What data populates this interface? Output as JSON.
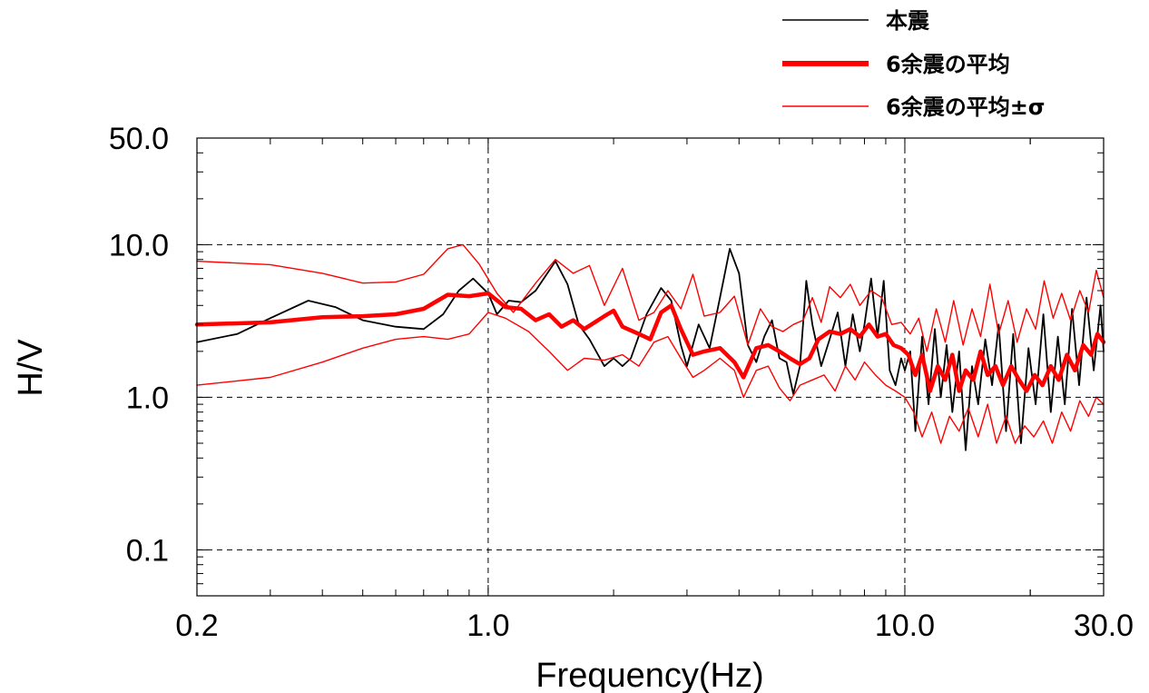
{
  "chart_data": {
    "type": "line",
    "xlabel": "Frequency(Hz)",
    "ylabel": "H/V",
    "xscale": "log",
    "yscale": "log",
    "xlim": [
      0.2,
      30.0
    ],
    "ylim": [
      0.05,
      50.0
    ],
    "grid": "dashed at major ticks",
    "legend_position": "top-right, above plot",
    "x_tick_labels": [
      {
        "value": 0.2,
        "label": "0.2"
      },
      {
        "value": 1.0,
        "label": "1.0"
      },
      {
        "value": 10.0,
        "label": "10.0"
      },
      {
        "value": 30.0,
        "label": "30.0"
      }
    ],
    "y_tick_labels": [
      {
        "value": 50.0,
        "label": "50.0"
      },
      {
        "value": 10.0,
        "label": "10.0"
      },
      {
        "value": 1.0,
        "label": "1.0"
      },
      {
        "value": 0.1,
        "label": "0.1"
      }
    ],
    "series": [
      {
        "name": "本震",
        "color": "#000000",
        "style": "thin",
        "points": [
          [
            0.2,
            2.3
          ],
          [
            0.25,
            2.6
          ],
          [
            0.3,
            3.3
          ],
          [
            0.37,
            4.3
          ],
          [
            0.43,
            3.9
          ],
          [
            0.5,
            3.2
          ],
          [
            0.6,
            2.9
          ],
          [
            0.7,
            2.8
          ],
          [
            0.78,
            3.5
          ],
          [
            0.85,
            5.0
          ],
          [
            0.92,
            6.0
          ],
          [
            1.0,
            4.8
          ],
          [
            1.05,
            3.5
          ],
          [
            1.12,
            4.3
          ],
          [
            1.2,
            4.2
          ],
          [
            1.3,
            5.0
          ],
          [
            1.45,
            7.8
          ],
          [
            1.55,
            5.5
          ],
          [
            1.65,
            3.0
          ],
          [
            1.75,
            2.4
          ],
          [
            1.9,
            1.6
          ],
          [
            2.0,
            1.8
          ],
          [
            2.1,
            1.6
          ],
          [
            2.2,
            1.8
          ],
          [
            2.4,
            3.5
          ],
          [
            2.6,
            5.2
          ],
          [
            2.75,
            4.3
          ],
          [
            2.9,
            2.2
          ],
          [
            3.0,
            1.6
          ],
          [
            3.2,
            3.0
          ],
          [
            3.4,
            2.1
          ],
          [
            3.6,
            4.5
          ],
          [
            3.8,
            9.4
          ],
          [
            4.0,
            6.5
          ],
          [
            4.2,
            2.2
          ],
          [
            4.4,
            1.7
          ],
          [
            4.6,
            2.5
          ],
          [
            4.8,
            3.2
          ],
          [
            5.0,
            1.8
          ],
          [
            5.2,
            1.7
          ],
          [
            5.4,
            1.05
          ],
          [
            5.6,
            1.6
          ],
          [
            5.8,
            5.8
          ],
          [
            6.0,
            3.0
          ],
          [
            6.3,
            1.6
          ],
          [
            6.6,
            2.4
          ],
          [
            6.9,
            3.6
          ],
          [
            7.2,
            1.6
          ],
          [
            7.5,
            3.5
          ],
          [
            7.8,
            2.0
          ],
          [
            8.0,
            3.0
          ],
          [
            8.3,
            6.0
          ],
          [
            8.6,
            2.5
          ],
          [
            8.9,
            5.8
          ],
          [
            9.2,
            1.5
          ],
          [
            9.5,
            1.2
          ],
          [
            9.8,
            1.8
          ],
          [
            10.0,
            1.5
          ],
          [
            10.3,
            2.0
          ],
          [
            10.6,
            0.6
          ],
          [
            11.0,
            2.5
          ],
          [
            11.4,
            0.9
          ],
          [
            11.8,
            2.8
          ],
          [
            12.2,
            1.0
          ],
          [
            12.6,
            2.2
          ],
          [
            13.0,
            0.8
          ],
          [
            13.5,
            2.0
          ],
          [
            14.0,
            0.45
          ],
          [
            14.5,
            1.6
          ],
          [
            15.0,
            0.9
          ],
          [
            15.6,
            2.4
          ],
          [
            16.2,
            1.2
          ],
          [
            16.8,
            3.0
          ],
          [
            17.5,
            0.6
          ],
          [
            18.2,
            2.6
          ],
          [
            19.0,
            0.5
          ],
          [
            19.8,
            2.1
          ],
          [
            20.6,
            0.9
          ],
          [
            21.5,
            3.5
          ],
          [
            22.4,
            0.8
          ],
          [
            23.3,
            2.5
          ],
          [
            24.2,
            0.9
          ],
          [
            25.2,
            3.8
          ],
          [
            26.2,
            1.2
          ],
          [
            27.3,
            4.5
          ],
          [
            28.4,
            1.5
          ],
          [
            29.5,
            4.0
          ],
          [
            30.0,
            2.0
          ]
        ]
      },
      {
        "name": "6余震の平均",
        "color": "#ff0000",
        "style": "thick",
        "points": [
          [
            0.2,
            3.0
          ],
          [
            0.3,
            3.1
          ],
          [
            0.4,
            3.35
          ],
          [
            0.5,
            3.4
          ],
          [
            0.6,
            3.5
          ],
          [
            0.7,
            3.8
          ],
          [
            0.8,
            4.7
          ],
          [
            0.9,
            4.6
          ],
          [
            1.0,
            4.8
          ],
          [
            1.1,
            3.9
          ],
          [
            1.2,
            3.8
          ],
          [
            1.3,
            3.2
          ],
          [
            1.4,
            3.5
          ],
          [
            1.5,
            2.9
          ],
          [
            1.6,
            3.2
          ],
          [
            1.7,
            2.8
          ],
          [
            1.9,
            3.4
          ],
          [
            2.0,
            3.7
          ],
          [
            2.1,
            2.9
          ],
          [
            2.3,
            2.6
          ],
          [
            2.45,
            2.4
          ],
          [
            2.6,
            3.6
          ],
          [
            2.75,
            4.0
          ],
          [
            2.9,
            2.8
          ],
          [
            3.0,
            2.3
          ],
          [
            3.1,
            1.9
          ],
          [
            3.3,
            2.0
          ],
          [
            3.6,
            2.1
          ],
          [
            3.9,
            1.7
          ],
          [
            4.1,
            1.35
          ],
          [
            4.4,
            2.1
          ],
          [
            4.7,
            2.2
          ],
          [
            5.0,
            2.0
          ],
          [
            5.3,
            1.8
          ],
          [
            5.6,
            1.65
          ],
          [
            5.9,
            1.8
          ],
          [
            6.2,
            2.4
          ],
          [
            6.6,
            2.7
          ],
          [
            7.0,
            2.6
          ],
          [
            7.4,
            2.8
          ],
          [
            7.8,
            2.5
          ],
          [
            8.2,
            3.0
          ],
          [
            8.6,
            2.5
          ],
          [
            9.0,
            2.6
          ],
          [
            9.4,
            2.2
          ],
          [
            9.8,
            2.1
          ],
          [
            10.2,
            1.9
          ],
          [
            10.6,
            1.4
          ],
          [
            11.0,
            1.9
          ],
          [
            11.5,
            1.1
          ],
          [
            12.0,
            1.6
          ],
          [
            12.5,
            1.3
          ],
          [
            13.0,
            1.9
          ],
          [
            13.5,
            1.1
          ],
          [
            14.0,
            1.5
          ],
          [
            14.6,
            1.3
          ],
          [
            15.2,
            2.0
          ],
          [
            15.8,
            1.4
          ],
          [
            16.5,
            1.6
          ],
          [
            17.2,
            1.2
          ],
          [
            18.0,
            1.6
          ],
          [
            18.8,
            1.3
          ],
          [
            19.6,
            1.1
          ],
          [
            20.5,
            1.4
          ],
          [
            21.4,
            1.2
          ],
          [
            22.4,
            1.6
          ],
          [
            23.4,
            1.3
          ],
          [
            24.5,
            1.9
          ],
          [
            25.6,
            1.5
          ],
          [
            26.8,
            2.2
          ],
          [
            28.0,
            1.9
          ],
          [
            29.0,
            2.6
          ],
          [
            30.0,
            2.3
          ]
        ]
      },
      {
        "name": "6余震の平均±σ",
        "color": "#ff0000",
        "style": "thin",
        "points": [
          [
            0.2,
            7.8
          ],
          [
            0.3,
            7.4
          ],
          [
            0.4,
            6.5
          ],
          [
            0.5,
            5.6
          ],
          [
            0.6,
            5.7
          ],
          [
            0.7,
            6.4
          ],
          [
            0.8,
            9.4
          ],
          [
            0.87,
            10.0
          ],
          [
            0.95,
            7.5
          ],
          [
            1.05,
            4.8
          ],
          [
            1.15,
            3.6
          ],
          [
            1.3,
            5.6
          ],
          [
            1.45,
            8.0
          ],
          [
            1.6,
            6.5
          ],
          [
            1.75,
            7.3
          ],
          [
            1.9,
            4.0
          ],
          [
            2.1,
            7.0
          ],
          [
            2.3,
            3.2
          ],
          [
            2.5,
            3.6
          ],
          [
            2.7,
            5.0
          ],
          [
            2.9,
            3.8
          ],
          [
            3.1,
            6.4
          ],
          [
            3.3,
            3.4
          ],
          [
            3.6,
            3.6
          ],
          [
            3.9,
            4.6
          ],
          [
            4.2,
            2.2
          ],
          [
            4.5,
            3.8
          ],
          [
            4.8,
            2.9
          ],
          [
            5.1,
            2.7
          ],
          [
            5.4,
            3.0
          ],
          [
            5.7,
            3.2
          ],
          [
            6.0,
            4.5
          ],
          [
            6.3,
            3.1
          ],
          [
            6.6,
            5.3
          ],
          [
            7.0,
            4.5
          ],
          [
            7.4,
            5.5
          ],
          [
            7.8,
            4.0
          ],
          [
            8.3,
            5.0
          ],
          [
            8.8,
            4.5
          ],
          [
            9.3,
            3.0
          ],
          [
            9.8,
            3.1
          ],
          [
            10.3,
            2.6
          ],
          [
            10.8,
            3.3
          ],
          [
            11.3,
            2.0
          ],
          [
            11.9,
            3.8
          ],
          [
            12.5,
            2.3
          ],
          [
            13.1,
            4.3
          ],
          [
            13.8,
            2.2
          ],
          [
            14.5,
            3.8
          ],
          [
            15.2,
            2.5
          ],
          [
            16.0,
            5.5
          ],
          [
            16.8,
            2.6
          ],
          [
            17.7,
            4.3
          ],
          [
            18.6,
            2.3
          ],
          [
            19.6,
            3.8
          ],
          [
            20.6,
            2.8
          ],
          [
            21.6,
            5.8
          ],
          [
            22.7,
            3.3
          ],
          [
            23.8,
            4.8
          ],
          [
            25.0,
            3.2
          ],
          [
            26.3,
            5.0
          ],
          [
            27.6,
            3.6
          ],
          [
            28.8,
            6.8
          ],
          [
            30.0,
            4.5
          ]
        ]
      },
      {
        "name": "",
        "color": "#ff0000",
        "style": "thin",
        "points": [
          [
            0.2,
            1.2
          ],
          [
            0.3,
            1.35
          ],
          [
            0.4,
            1.7
          ],
          [
            0.5,
            2.1
          ],
          [
            0.6,
            2.4
          ],
          [
            0.7,
            2.5
          ],
          [
            0.8,
            2.4
          ],
          [
            0.9,
            2.6
          ],
          [
            1.0,
            3.6
          ],
          [
            1.1,
            3.3
          ],
          [
            1.25,
            2.7
          ],
          [
            1.4,
            2.0
          ],
          [
            1.55,
            1.5
          ],
          [
            1.7,
            1.8
          ],
          [
            1.9,
            1.75
          ],
          [
            2.1,
            1.9
          ],
          [
            2.3,
            1.6
          ],
          [
            2.5,
            2.3
          ],
          [
            2.7,
            2.5
          ],
          [
            2.9,
            1.8
          ],
          [
            3.1,
            1.35
          ],
          [
            3.3,
            1.5
          ],
          [
            3.6,
            1.8
          ],
          [
            3.9,
            1.5
          ],
          [
            4.1,
            1.0
          ],
          [
            4.4,
            1.5
          ],
          [
            4.7,
            1.6
          ],
          [
            5.0,
            1.15
          ],
          [
            5.3,
            0.95
          ],
          [
            5.6,
            1.2
          ],
          [
            6.0,
            1.3
          ],
          [
            6.4,
            1.4
          ],
          [
            6.8,
            1.1
          ],
          [
            7.2,
            1.6
          ],
          [
            7.6,
            1.3
          ],
          [
            8.0,
            1.7
          ],
          [
            8.5,
            1.4
          ],
          [
            9.0,
            1.2
          ],
          [
            9.5,
            1.1
          ],
          [
            10.0,
            1.0
          ],
          [
            10.5,
            0.8
          ],
          [
            11.0,
            0.55
          ],
          [
            11.6,
            0.8
          ],
          [
            12.2,
            0.5
          ],
          [
            12.8,
            0.75
          ],
          [
            13.5,
            0.6
          ],
          [
            14.2,
            0.85
          ],
          [
            15.0,
            0.55
          ],
          [
            15.8,
            0.9
          ],
          [
            16.6,
            0.5
          ],
          [
            17.5,
            0.75
          ],
          [
            18.4,
            0.5
          ],
          [
            19.4,
            0.65
          ],
          [
            20.4,
            0.55
          ],
          [
            21.5,
            0.7
          ],
          [
            22.6,
            0.5
          ],
          [
            23.8,
            0.8
          ],
          [
            25.0,
            0.6
          ],
          [
            26.3,
            0.95
          ],
          [
            27.6,
            0.75
          ],
          [
            28.8,
            1.0
          ],
          [
            30.0,
            0.9
          ]
        ]
      }
    ]
  }
}
